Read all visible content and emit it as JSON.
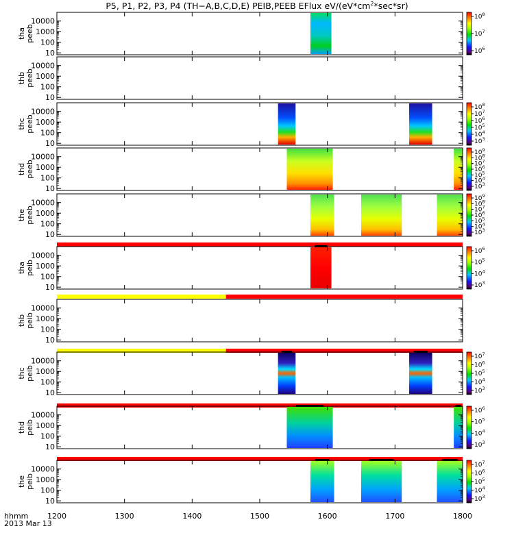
{
  "title_pre": "P5, P1, P2, P3, P4 (TH−A,B,C,D,E) PEIB,PEEB EFlux eV/(eV*cm",
  "title_sup": "2",
  "title_post": "*sec*sr)",
  "x_axis_label_top": "hhmm",
  "x_axis_label_bottom": "2013 Mar 13",
  "chart_data": {
    "type": "heatmap",
    "x_unit": "hhmm",
    "xlim": [
      1200,
      1800
    ],
    "x_ticks": [
      "1200",
      "1300",
      "1400",
      "1500",
      "1600",
      "1700",
      "1800"
    ],
    "y_scale": "log",
    "y_ticks": [
      "10",
      "100",
      "1000",
      "10000"
    ],
    "panels": [
      {
        "label_top": "tha",
        "label_bottom": "peeb",
        "colorbar_ticks": [
          {
            "base": "10",
            "exp": "8"
          },
          {
            "base": "10",
            "exp": "7"
          },
          {
            "base": "10",
            "exp": "6"
          }
        ],
        "data_intervals": [
          [
            1575,
            1606
          ]
        ],
        "status_bar": null
      },
      {
        "label_top": "thb",
        "label_bottom": "peeb",
        "colorbar_ticks": [],
        "data_intervals": [],
        "status_bar": null
      },
      {
        "label_top": "thc",
        "label_bottom": "peeb",
        "colorbar_ticks": [
          {
            "base": "10",
            "exp": "8"
          },
          {
            "base": "10",
            "exp": "7"
          },
          {
            "base": "10",
            "exp": "6"
          },
          {
            "base": "10",
            "exp": "5"
          },
          {
            "base": "10",
            "exp": "4"
          },
          {
            "base": "10",
            "exp": "3"
          }
        ],
        "data_intervals": [
          [
            1527,
            1553
          ],
          [
            1721,
            1755
          ]
        ],
        "status_bar": null
      },
      {
        "label_top": "thd",
        "label_bottom": "peeb",
        "colorbar_ticks": [
          {
            "base": "10",
            "exp": "9"
          },
          {
            "base": "10",
            "exp": "8"
          },
          {
            "base": "10",
            "exp": "7"
          },
          {
            "base": "10",
            "exp": "6"
          },
          {
            "base": "10",
            "exp": "5"
          },
          {
            "base": "10",
            "exp": "4"
          },
          {
            "base": "10",
            "exp": "3"
          }
        ],
        "data_intervals": [
          [
            1540,
            1608
          ],
          [
            1787,
            1800
          ]
        ],
        "status_bar": null
      },
      {
        "label_top": "the",
        "label_bottom": "peeb",
        "colorbar_ticks": [
          {
            "base": "10",
            "exp": "9"
          },
          {
            "base": "10",
            "exp": "8"
          },
          {
            "base": "10",
            "exp": "7"
          },
          {
            "base": "10",
            "exp": "6"
          },
          {
            "base": "10",
            "exp": "5"
          },
          {
            "base": "10",
            "exp": "4"
          },
          {
            "base": "10",
            "exp": "3"
          }
        ],
        "data_intervals": [
          [
            1575,
            1610
          ],
          [
            1650,
            1710
          ],
          [
            1762,
            1800
          ]
        ],
        "status_bar": null
      },
      {
        "label_top": "tha",
        "label_bottom": "peib",
        "colorbar_ticks": [
          {
            "base": "10",
            "exp": "6"
          },
          {
            "base": "10",
            "exp": "5"
          },
          {
            "base": "10",
            "exp": "4"
          },
          {
            "base": "10",
            "exp": "3"
          }
        ],
        "data_intervals": [
          [
            1575,
            1606
          ]
        ],
        "status_bar": [
          {
            "from": 1200,
            "to": 1800,
            "color": "#ff0000"
          }
        ]
      },
      {
        "label_top": "thb",
        "label_bottom": "peib",
        "colorbar_ticks": [],
        "data_intervals": [],
        "status_bar": [
          {
            "from": 1200,
            "to": 1450,
            "color": "#ffff00"
          },
          {
            "from": 1450,
            "to": 1800,
            "color": "#ff0000"
          }
        ]
      },
      {
        "label_top": "thc",
        "label_bottom": "peib",
        "colorbar_ticks": [
          {
            "base": "10",
            "exp": "7"
          },
          {
            "base": "10",
            "exp": "6"
          },
          {
            "base": "10",
            "exp": "5"
          },
          {
            "base": "10",
            "exp": "4"
          },
          {
            "base": "10",
            "exp": "3"
          }
        ],
        "data_intervals": [
          [
            1527,
            1553
          ],
          [
            1721,
            1755
          ]
        ],
        "status_bar": [
          {
            "from": 1200,
            "to": 1450,
            "color": "#ffff00"
          },
          {
            "from": 1450,
            "to": 1800,
            "color": "#ff0000"
          }
        ]
      },
      {
        "label_top": "thd",
        "label_bottom": "peib",
        "colorbar_ticks": [
          {
            "base": "10",
            "exp": "6"
          },
          {
            "base": "10",
            "exp": "5"
          },
          {
            "base": "10",
            "exp": "4"
          },
          {
            "base": "10",
            "exp": "3"
          }
        ],
        "data_intervals": [
          [
            1540,
            1608
          ],
          [
            1787,
            1800
          ]
        ],
        "status_bar": [
          {
            "from": 1200,
            "to": 1800,
            "color": "#ff0000"
          }
        ]
      },
      {
        "label_top": "the",
        "label_bottom": "peib",
        "colorbar_ticks": [
          {
            "base": "10",
            "exp": "7"
          },
          {
            "base": "10",
            "exp": "6"
          },
          {
            "base": "10",
            "exp": "5"
          },
          {
            "base": "10",
            "exp": "4"
          },
          {
            "base": "10",
            "exp": "3"
          }
        ],
        "data_intervals": [
          [
            1575,
            1610
          ],
          [
            1650,
            1710
          ],
          [
            1762,
            1800
          ]
        ],
        "status_bar": [
          {
            "from": 1200,
            "to": 1800,
            "color": "#ff0000"
          }
        ]
      }
    ]
  }
}
